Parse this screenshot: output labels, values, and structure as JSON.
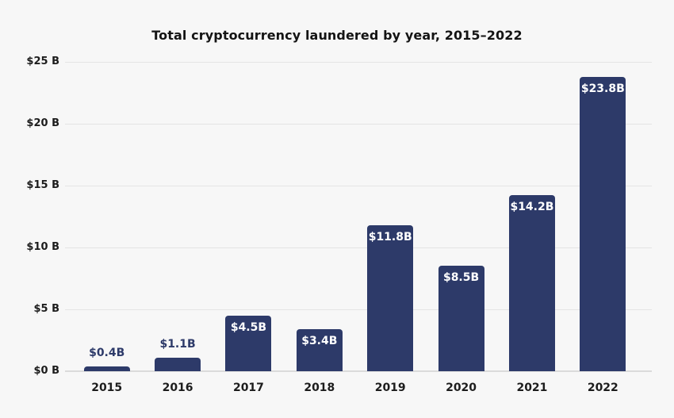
{
  "page": {
    "background": "#f7f7f7"
  },
  "chart_data": {
    "type": "bar",
    "title": "Total cryptocurrency laundered by year, 2015–2022",
    "categories": [
      "2015",
      "2016",
      "2017",
      "2018",
      "2019",
      "2020",
      "2021",
      "2022"
    ],
    "values": [
      0.4,
      1.1,
      4.5,
      3.4,
      11.8,
      8.5,
      14.2,
      23.8
    ],
    "value_labels": [
      "$0.4B",
      "$1.1B",
      "$4.5B",
      "$3.4B",
      "$11.8B",
      "$8.5B",
      "$14.2B",
      "$23.8B"
    ],
    "xlabel": "",
    "ylabel": "",
    "ylim": [
      0,
      25
    ],
    "ytick_step": 5,
    "ytick_labels": [
      "$0 B",
      "$5 B",
      "$10 B",
      "$15 B",
      "$20 B",
      "$25 B"
    ],
    "grid": true,
    "legend": false,
    "colors": {
      "bar": "#2d3a69",
      "label_inside": "#ffffff",
      "label_outside": "#2d3a69",
      "gridline": "#e4e4e4",
      "baseline": "#dbdbdb",
      "axis_text": "#1c1c1c",
      "title_text": "#141414",
      "background": "#f7f7f7"
    }
  }
}
